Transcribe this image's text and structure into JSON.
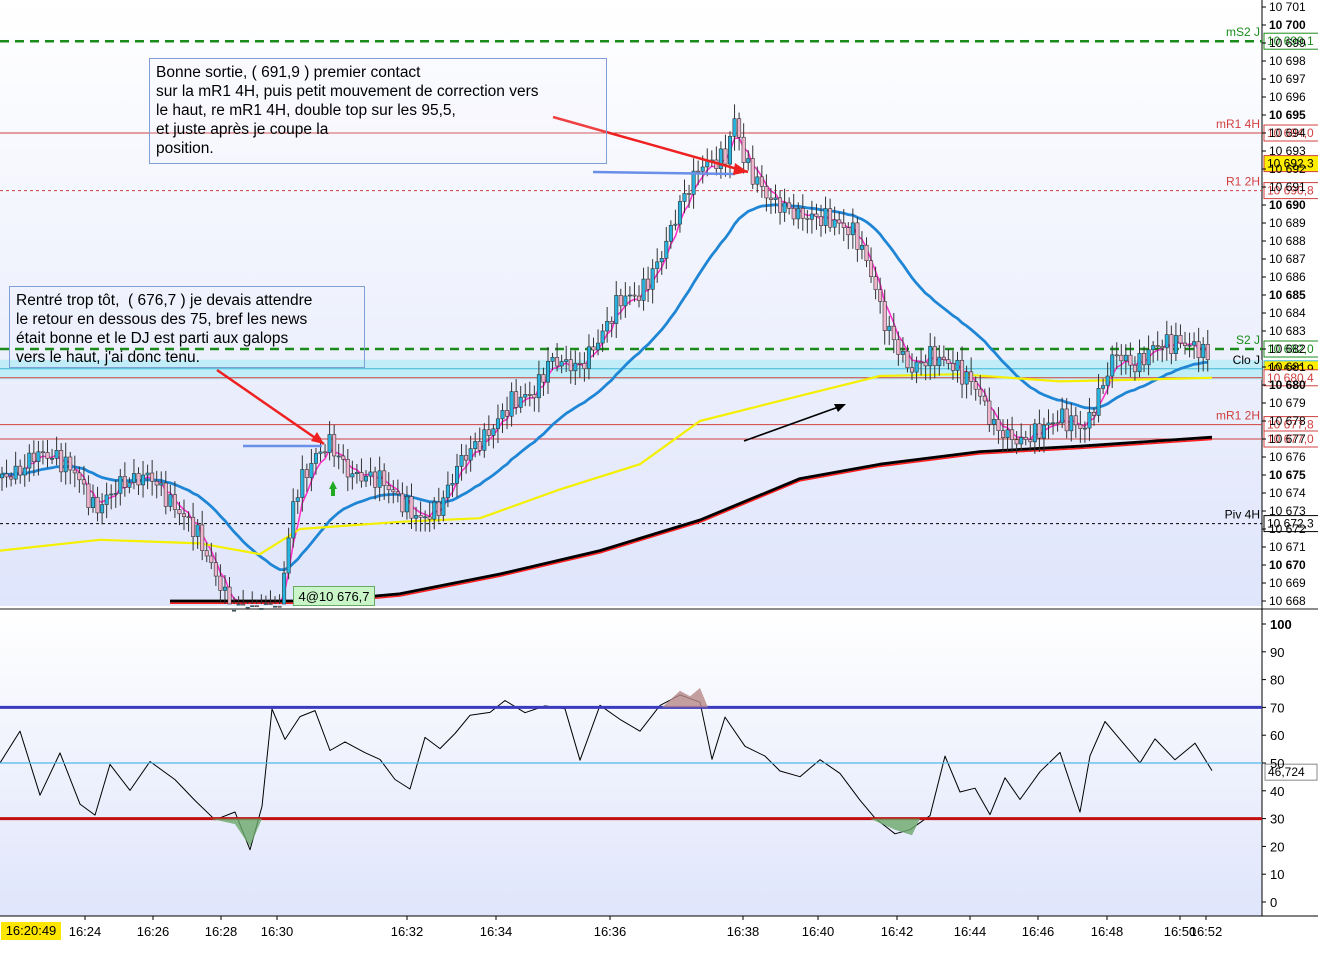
{
  "chart_data": [
    {
      "type": "candlestick",
      "title": "",
      "price_axis": {
        "ylim": [
          10667.5,
          10701.3
        ],
        "ticks": [
          "10 701",
          "10 700",
          "10 699",
          "10 698",
          "10 697",
          "10 696",
          "10 695",
          "10 694",
          "10 693",
          "10 692",
          "10 691",
          "10 690",
          "10 689",
          "10 688",
          "10 687",
          "10 686",
          "10 685",
          "10 684",
          "10 683",
          "10 682",
          "10 681",
          "10 680",
          "10 679",
          "10 678",
          "10 677",
          "10 676",
          "10 675",
          "10 674",
          "10 673",
          "10 672",
          "10 671",
          "10 670",
          "10 669",
          "10 668"
        ],
        "bold_ticks": [
          "10 700",
          "10 695",
          "10 690",
          "10 685",
          "10 680",
          "10 675",
          "10 670"
        ]
      },
      "time_axis": {
        "current_time": "16:20:49",
        "labels": [
          "16:24",
          "16:26",
          "16:28",
          "16:30",
          "16:32",
          "16:34",
          "16:36",
          "16:38",
          "16:40",
          "16:42",
          "16:44",
          "16:46",
          "16:48",
          "16:50",
          "16:52"
        ]
      },
      "levels": [
        {
          "name": "mS2 J",
          "value": 10699.1,
          "price_tag": "10 699,1",
          "color": "#1a8c1a",
          "style": "dashed"
        },
        {
          "name": "mR1 4H",
          "value": 10694.0,
          "price_tag": "10 694,0",
          "color": "#d04040",
          "style": "solid"
        },
        {
          "name": "",
          "value": 10692.3,
          "price_tag": "10 692,3",
          "color": "#d04040",
          "style": "solid",
          "highlight": true
        },
        {
          "name": "R1 2H",
          "value": 10690.8,
          "price_tag": "10 690,8",
          "color": "#d04040",
          "style": "dotted"
        },
        {
          "name": "S2 J",
          "value": 10682.0,
          "price_tag": "10 682,0",
          "color": "#1a8c1a",
          "style": "dashed"
        },
        {
          "name": "Clo J",
          "value": 10680.9,
          "price_tag": "10 680,9",
          "color": "#40b8d8",
          "style": "solid",
          "highlight": true
        },
        {
          "name": "",
          "value": 10680.4,
          "price_tag": "10 680,4",
          "color": "#d04040",
          "style": "solid"
        },
        {
          "name": "mR1 2H",
          "value": 10677.8,
          "price_tag": "10 677,8",
          "color": "#d04040",
          "style": "solid"
        },
        {
          "name": "",
          "value": 10677.0,
          "price_tag": "10 677,0",
          "color": "#d04040",
          "style": "solid"
        },
        {
          "name": "Piv 4H",
          "value": 10672.3,
          "price_tag": "10 672,3",
          "color": "#000000",
          "style": "dotted"
        }
      ],
      "series": [
        {
          "name": "",
          "color": "#ff33cc",
          "kind": "short_ma"
        },
        {
          "name": "",
          "color": "#1f86d6",
          "kind": "medium_ma"
        },
        {
          "name": "",
          "color": "#f4f000",
          "kind": "slow_ma"
        },
        {
          "name": "",
          "color": "#000000",
          "kind": "long_ma"
        },
        {
          "name": "",
          "color": "#ff2020",
          "kind": "long_ma_2"
        }
      ],
      "trade_label": "4@10 676,7",
      "annotations": [
        "Bonne sortie, ( 691,9 ) premier contact\nsur la mR1 4H, puis petit mouvement de correction vers\nle haut, re mR1 4H, double top sur les 95,5,\net juste après je coupe la\nposition.",
        "Rentré trop tôt,  ( 676,7 ) je devais attendre\nle retour en dessous des 75, bref les news\nétait bonne et le DJ est parti aux galops\nvers le haut, j'ai donc tenu."
      ]
    },
    {
      "type": "line",
      "title": "",
      "ylim": [
        0,
        100
      ],
      "ticks": [
        "100",
        "90",
        "80",
        "70",
        "60",
        "50",
        "40",
        "30",
        "20",
        "10",
        "0"
      ],
      "bands": [
        70,
        50,
        30
      ],
      "last_value": "46,724",
      "series": [
        {
          "name": "",
          "color": "#000000"
        }
      ]
    }
  ],
  "colors": {
    "up": "#28b4e0",
    "down": "#f0b4cc",
    "background": "#ffffff"
  }
}
